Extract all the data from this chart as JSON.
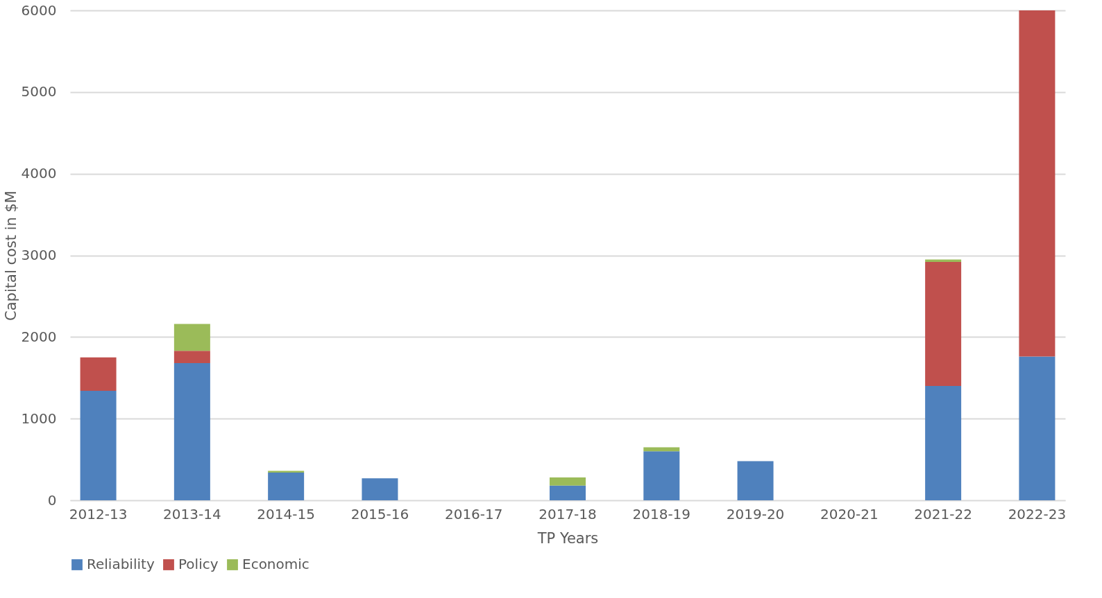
{
  "chart_data": {
    "type": "bar",
    "stacked": true,
    "xlabel": "TP Years",
    "ylabel": "Capital cost in $M",
    "categories": [
      "2012-13",
      "2013-14",
      "2014-15",
      "2015-16",
      "2016-17",
      "2017-18",
      "2018-19",
      "2019-20",
      "2020-21",
      "2021-22",
      "2022-23"
    ],
    "series": [
      {
        "name": "Reliability",
        "color": "#4f81bd",
        "values": [
          1340,
          1680,
          340,
          270,
          0,
          180,
          600,
          480,
          0,
          1400,
          1760
        ]
      },
      {
        "name": "Policy",
        "color": "#c0504d",
        "values": [
          410,
          150,
          null,
          null,
          null,
          null,
          null,
          null,
          null,
          1520,
          4240
        ]
      },
      {
        "name": "Economic",
        "color": "#9bbb59",
        "values": [
          null,
          330,
          20,
          null,
          null,
          100,
          50,
          null,
          null,
          30,
          null
        ]
      }
    ],
    "ylim": [
      0,
      6000
    ],
    "yticks": [
      0,
      1000,
      2000,
      3000,
      4000,
      5000,
      6000
    ],
    "grid": "y",
    "legend": "bottom"
  }
}
